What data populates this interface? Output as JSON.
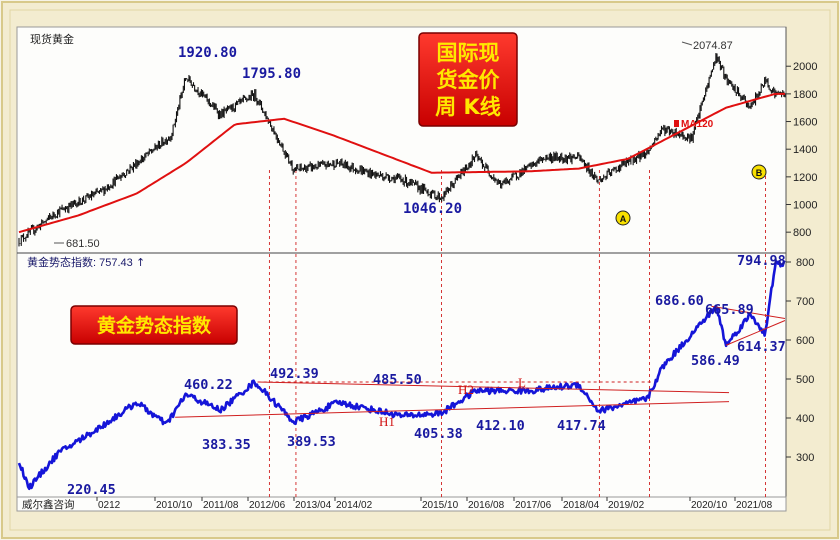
{
  "upper": {
    "instrument": "现货黄金",
    "badge": [
      "国际现",
      "货金价",
      "周  K线"
    ],
    "ma_label": "MA120",
    "y_ticks": [
      2000,
      1800,
      1600,
      1400,
      1200,
      1000,
      800
    ],
    "markers": [
      "A",
      "B"
    ],
    "annotations": [
      "1920.80",
      "1795.80",
      "1046.20",
      "681.50",
      "2074.87"
    ]
  },
  "lower": {
    "index_label": "黄金势态指数: 757.43",
    "badge": "黄金势态指数",
    "y_ticks": [
      800,
      700,
      600,
      500,
      400,
      300
    ],
    "annotations": [
      "794.98",
      "686.60",
      "665.89",
      "614.37",
      "586.49",
      "492.39",
      "485.50",
      "460.22",
      "383.35",
      "389.53",
      "405.38",
      "412.10",
      "417.74",
      "220.45"
    ],
    "line_labels": [
      "H2",
      "L",
      "H1"
    ]
  },
  "x_axis": {
    "source": "威尔鑫咨询",
    "ticks": [
      "0212",
      "2010/10",
      "2011/08",
      "2012/06",
      "2013/04",
      "2014/02",
      "2015/10",
      "2016/08",
      "2017/06",
      "2018/04",
      "2019/02",
      "2020/10",
      "2021/08"
    ]
  },
  "colors": {
    "background": "#fdfdfb",
    "candles": "#111111",
    "ma_line": "#e01010",
    "index_line": "#1515d8",
    "annotation_text": "#1a1aa0",
    "badge_fill": "#e80b0b",
    "badge_text": "#ffe800"
  },
  "chart_data": [
    {
      "type": "line",
      "title": "",
      "series": [
        {
          "name": "现货黄金",
          "x": [
            "2008/10",
            "2009/06",
            "2010/03",
            "2010/10",
            "2011/05",
            "2011/08",
            "2012/03",
            "2012/10",
            "2013/06",
            "2014/03",
            "2014/10",
            "2015/04",
            "2015/12",
            "2016/07",
            "2016/12",
            "2017/09",
            "2018/04",
            "2018/08",
            "2019/01",
            "2019/06",
            "2019/09",
            "2020/03",
            "2020/08",
            "2020/10",
            "2021/03",
            "2021/06",
            "2021/08"
          ],
          "y": [
            740,
            950,
            1100,
            1300,
            1500,
            1920.8,
            1650,
            1795.8,
            1250,
            1300,
            1220,
            1180,
            1046.2,
            1350,
            1140,
            1340,
            1340,
            1170,
            1290,
            1380,
            1550,
            1480,
            2074.87,
            1900,
            1700,
            1900,
            1800
          ]
        },
        {
          "name": "MA120",
          "x": [
            "2008/10",
            "2009/10",
            "2010/10",
            "2011/08",
            "2012/06",
            "2013/04",
            "2014/02",
            "2015/10",
            "2017/06",
            "2018/04",
            "2019/02",
            "2020/10",
            "2021/08"
          ],
          "y": [
            800,
            920,
            1080,
            1300,
            1580,
            1620,
            1500,
            1230,
            1240,
            1260,
            1330,
            1700,
            1800
          ]
        }
      ],
      "ylim": [
        700,
        2100
      ]
    },
    {
      "type": "line",
      "title": "",
      "series": [
        {
          "name": "黄金势态指数",
          "x": [
            "2008/10",
            "2008/12",
            "2009/06",
            "2010/03",
            "2010/10",
            "2011/04",
            "2011/08",
            "2012/03",
            "2012/10",
            "2013/06",
            "2014/03",
            "2015/04",
            "2015/12",
            "2016/07",
            "2017/06",
            "2018/04",
            "2018/08",
            "2019/06",
            "2019/09",
            "2020/08",
            "2020/10",
            "2021/03",
            "2021/06",
            "2021/08"
          ],
          "y": [
            290,
            220.45,
            310,
            380,
            440,
            383.35,
            460.22,
            420,
            492.39,
            389.53,
            440,
            405.38,
            412.1,
            470,
            470,
            485.5,
            417.74,
            450,
            530,
            686.6,
            586.49,
            665.89,
            614.37,
            794.98
          ]
        }
      ],
      "ylim": [
        200,
        820
      ]
    }
  ]
}
